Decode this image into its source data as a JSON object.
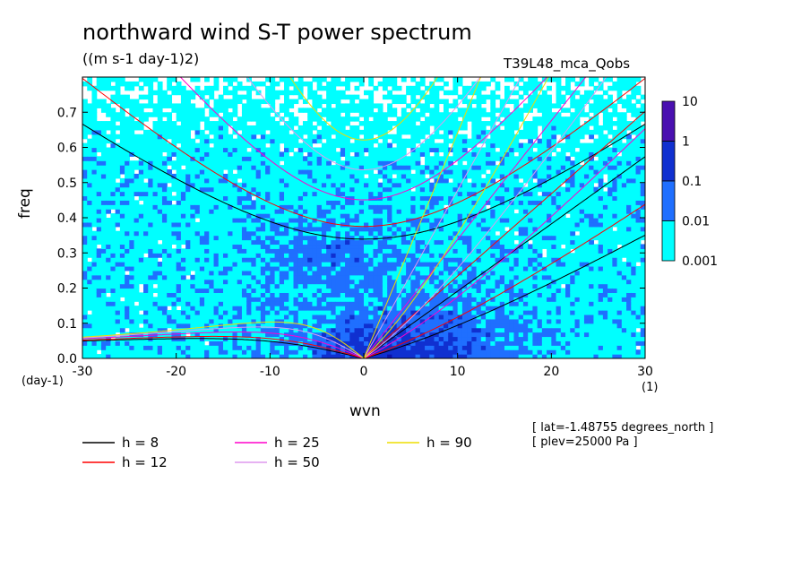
{
  "title": "northward wind S-T power spectrum",
  "subtitle": "((m s-1 day-1)2)",
  "run_label": "T39L48_mca_Qobs",
  "xunits": "(1)",
  "yunits": "(day-1)",
  "meta": [
    "[ lat=-1.48755 degrees_north ]",
    "[ plev=25000 Pa ]"
  ],
  "chart_data": {
    "type": "heatmap",
    "title": "northward wind S-T power spectrum",
    "subtitle": "((m s-1 day-1)2)",
    "xlabel": "wvn",
    "ylabel": "freq",
    "xlim": [
      -30,
      30
    ],
    "ylim": [
      0,
      0.8
    ],
    "x_ticks": [
      "-30",
      "-20",
      "-10",
      "0",
      "10",
      "20",
      "30"
    ],
    "y_ticks": [
      "0.0",
      "0.1",
      "0.2",
      "0.3",
      "0.4",
      "0.5",
      "0.6",
      "0.7"
    ],
    "colorbar": {
      "levels": [
        "0.001",
        "0.01",
        "0.1",
        "1",
        "10"
      ],
      "colors": [
        "#00ffff",
        "#1f6fff",
        "#1030d0",
        "#0a10a8",
        "#4a10b0"
      ]
    },
    "dispersion_curves": [
      {
        "name": "h =  8",
        "color": "#000000"
      },
      {
        "name": "h = 12",
        "color": "#ff0000"
      },
      {
        "name": "h = 25",
        "color": "#ff00cc"
      },
      {
        "name": "h = 50",
        "color": "#dd99ee"
      },
      {
        "name": "h = 90",
        "color": "#eedd00"
      }
    ]
  }
}
